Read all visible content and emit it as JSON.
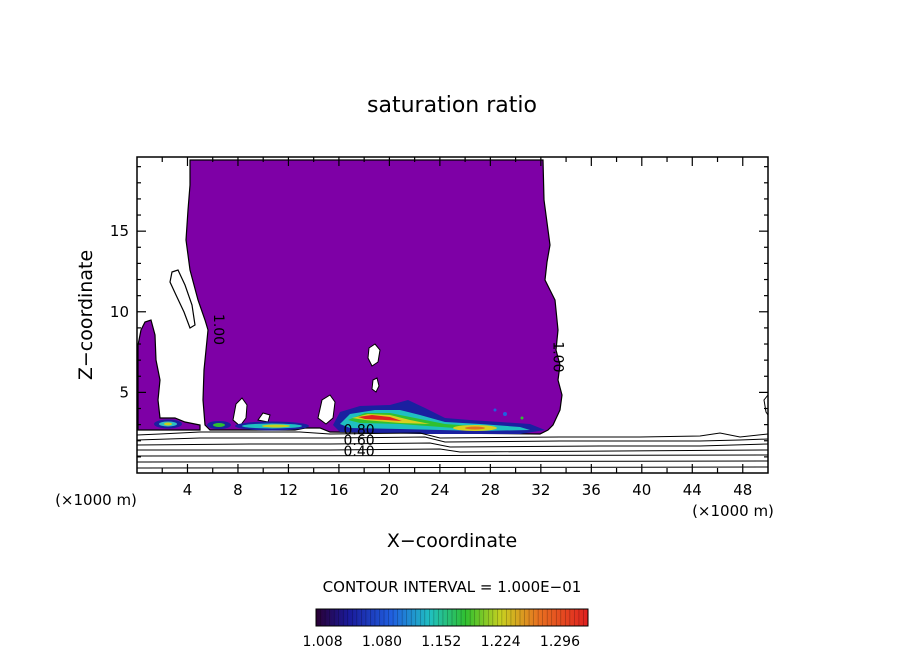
{
  "chart_data": {
    "type": "contour",
    "title": "saturation ratio",
    "xlabel": "X−coordinate",
    "ylabel": "Z−coordinate",
    "x_unit_left": "(×1000 m)",
    "x_unit_right": "(×1000 m)",
    "xlim": [
      0,
      50
    ],
    "ylim": [
      0,
      19.6
    ],
    "xticks": [
      4,
      8,
      12,
      16,
      20,
      24,
      28,
      32,
      36,
      40,
      44,
      48
    ],
    "yticks": [
      5,
      10,
      15
    ],
    "contour_interval_text": "CONTOUR INTERVAL = 1.000E−01",
    "contour_labels": [
      {
        "text": "1.00",
        "x": 6.1,
        "y": 8.9
      },
      {
        "text": "1.00",
        "x": 33.0,
        "y": 7.2
      },
      {
        "text": "0.80",
        "x": 17.6,
        "y": 2.4
      },
      {
        "text": "0.60",
        "x": 17.6,
        "y": 1.75
      },
      {
        "text": "0.40",
        "x": 17.6,
        "y": 1.05
      }
    ],
    "supersaturated_region_color": "#7e00a6",
    "colorbar": {
      "ticks": [
        "1.008",
        "1.080",
        "1.152",
        "1.224",
        "1.296"
      ],
      "min": 1.0,
      "max": 1.33
    },
    "subsaturated_contour_levels": [
      0.1,
      0.2,
      0.3,
      0.4,
      0.5,
      0.6,
      0.7,
      0.8,
      0.9
    ]
  }
}
